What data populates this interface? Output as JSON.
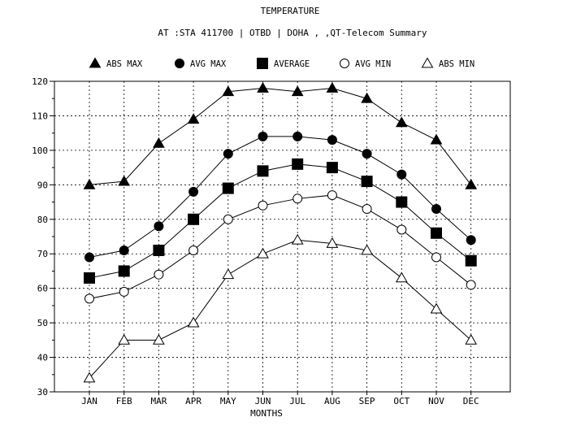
{
  "chart_data": {
    "type": "line",
    "title": "TEMPERATURE",
    "subtitle": "AT :STA 411700 | OTBD | DOHA , ,QT-Telecom Summary",
    "xlabel": "MONTHS",
    "ylabel": "",
    "categories": [
      "JAN",
      "FEB",
      "MAR",
      "APR",
      "MAY",
      "JUN",
      "JUL",
      "AUG",
      "SEP",
      "OCT",
      "NOV",
      "DEC"
    ],
    "ylim": [
      30,
      120
    ],
    "yticks": [
      30,
      40,
      50,
      60,
      70,
      80,
      90,
      100,
      110,
      120
    ],
    "grid": true,
    "legend_position": "top",
    "series": [
      {
        "name": "ABS MAX",
        "marker": "triangle-filled",
        "values": [
          90,
          91,
          102,
          109,
          117,
          118,
          117,
          118,
          115,
          108,
          103,
          90
        ]
      },
      {
        "name": "AVG MAX",
        "marker": "circle-filled",
        "values": [
          69,
          71,
          78,
          88,
          99,
          104,
          104,
          103,
          99,
          93,
          83,
          74
        ]
      },
      {
        "name": "AVERAGE",
        "marker": "square-filled",
        "values": [
          63,
          65,
          71,
          80,
          89,
          94,
          96,
          95,
          91,
          85,
          76,
          68
        ]
      },
      {
        "name": "AVG MIN",
        "marker": "circle-open",
        "values": [
          57,
          59,
          64,
          71,
          80,
          84,
          86,
          87,
          83,
          77,
          69,
          61
        ]
      },
      {
        "name": "ABS MIN",
        "marker": "triangle-open",
        "values": [
          34,
          45,
          45,
          50,
          64,
          70,
          74,
          73,
          71,
          63,
          54,
          45
        ]
      }
    ]
  }
}
